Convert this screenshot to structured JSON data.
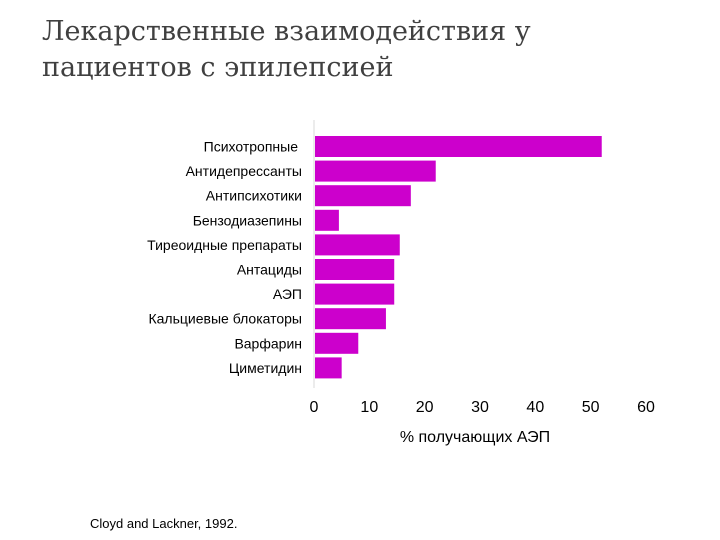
{
  "title": "Лекарственные взаимодействия у пациентов с эпилепсией",
  "source": "Cloyd and Lackner, 1992.",
  "colors": {
    "bar": "#cc00cc",
    "axis": "#d9d9d9"
  },
  "chart_data": {
    "type": "bar",
    "orientation": "horizontal",
    "title": "Лекарственные взаимодействия у пациентов с эпилепсией",
    "categories": [
      "Психотропные",
      "Антидепрессанты",
      "Антипсихотики",
      "Бензодиазепины",
      "Тиреоидные препараты",
      "Антациды",
      "АЭП",
      "Кальциевые блокаторы",
      "Варфарин",
      "Циметидин"
    ],
    "values": [
      52,
      22,
      17.5,
      4.5,
      15.5,
      14.5,
      14.5,
      13,
      8,
      5
    ],
    "xlabel": "% получающих АЭП",
    "ylabel": "",
    "xlim": [
      0,
      60
    ],
    "xticks": [
      0,
      10,
      20,
      30,
      40,
      50,
      60
    ],
    "grid": false,
    "legend": "none"
  }
}
